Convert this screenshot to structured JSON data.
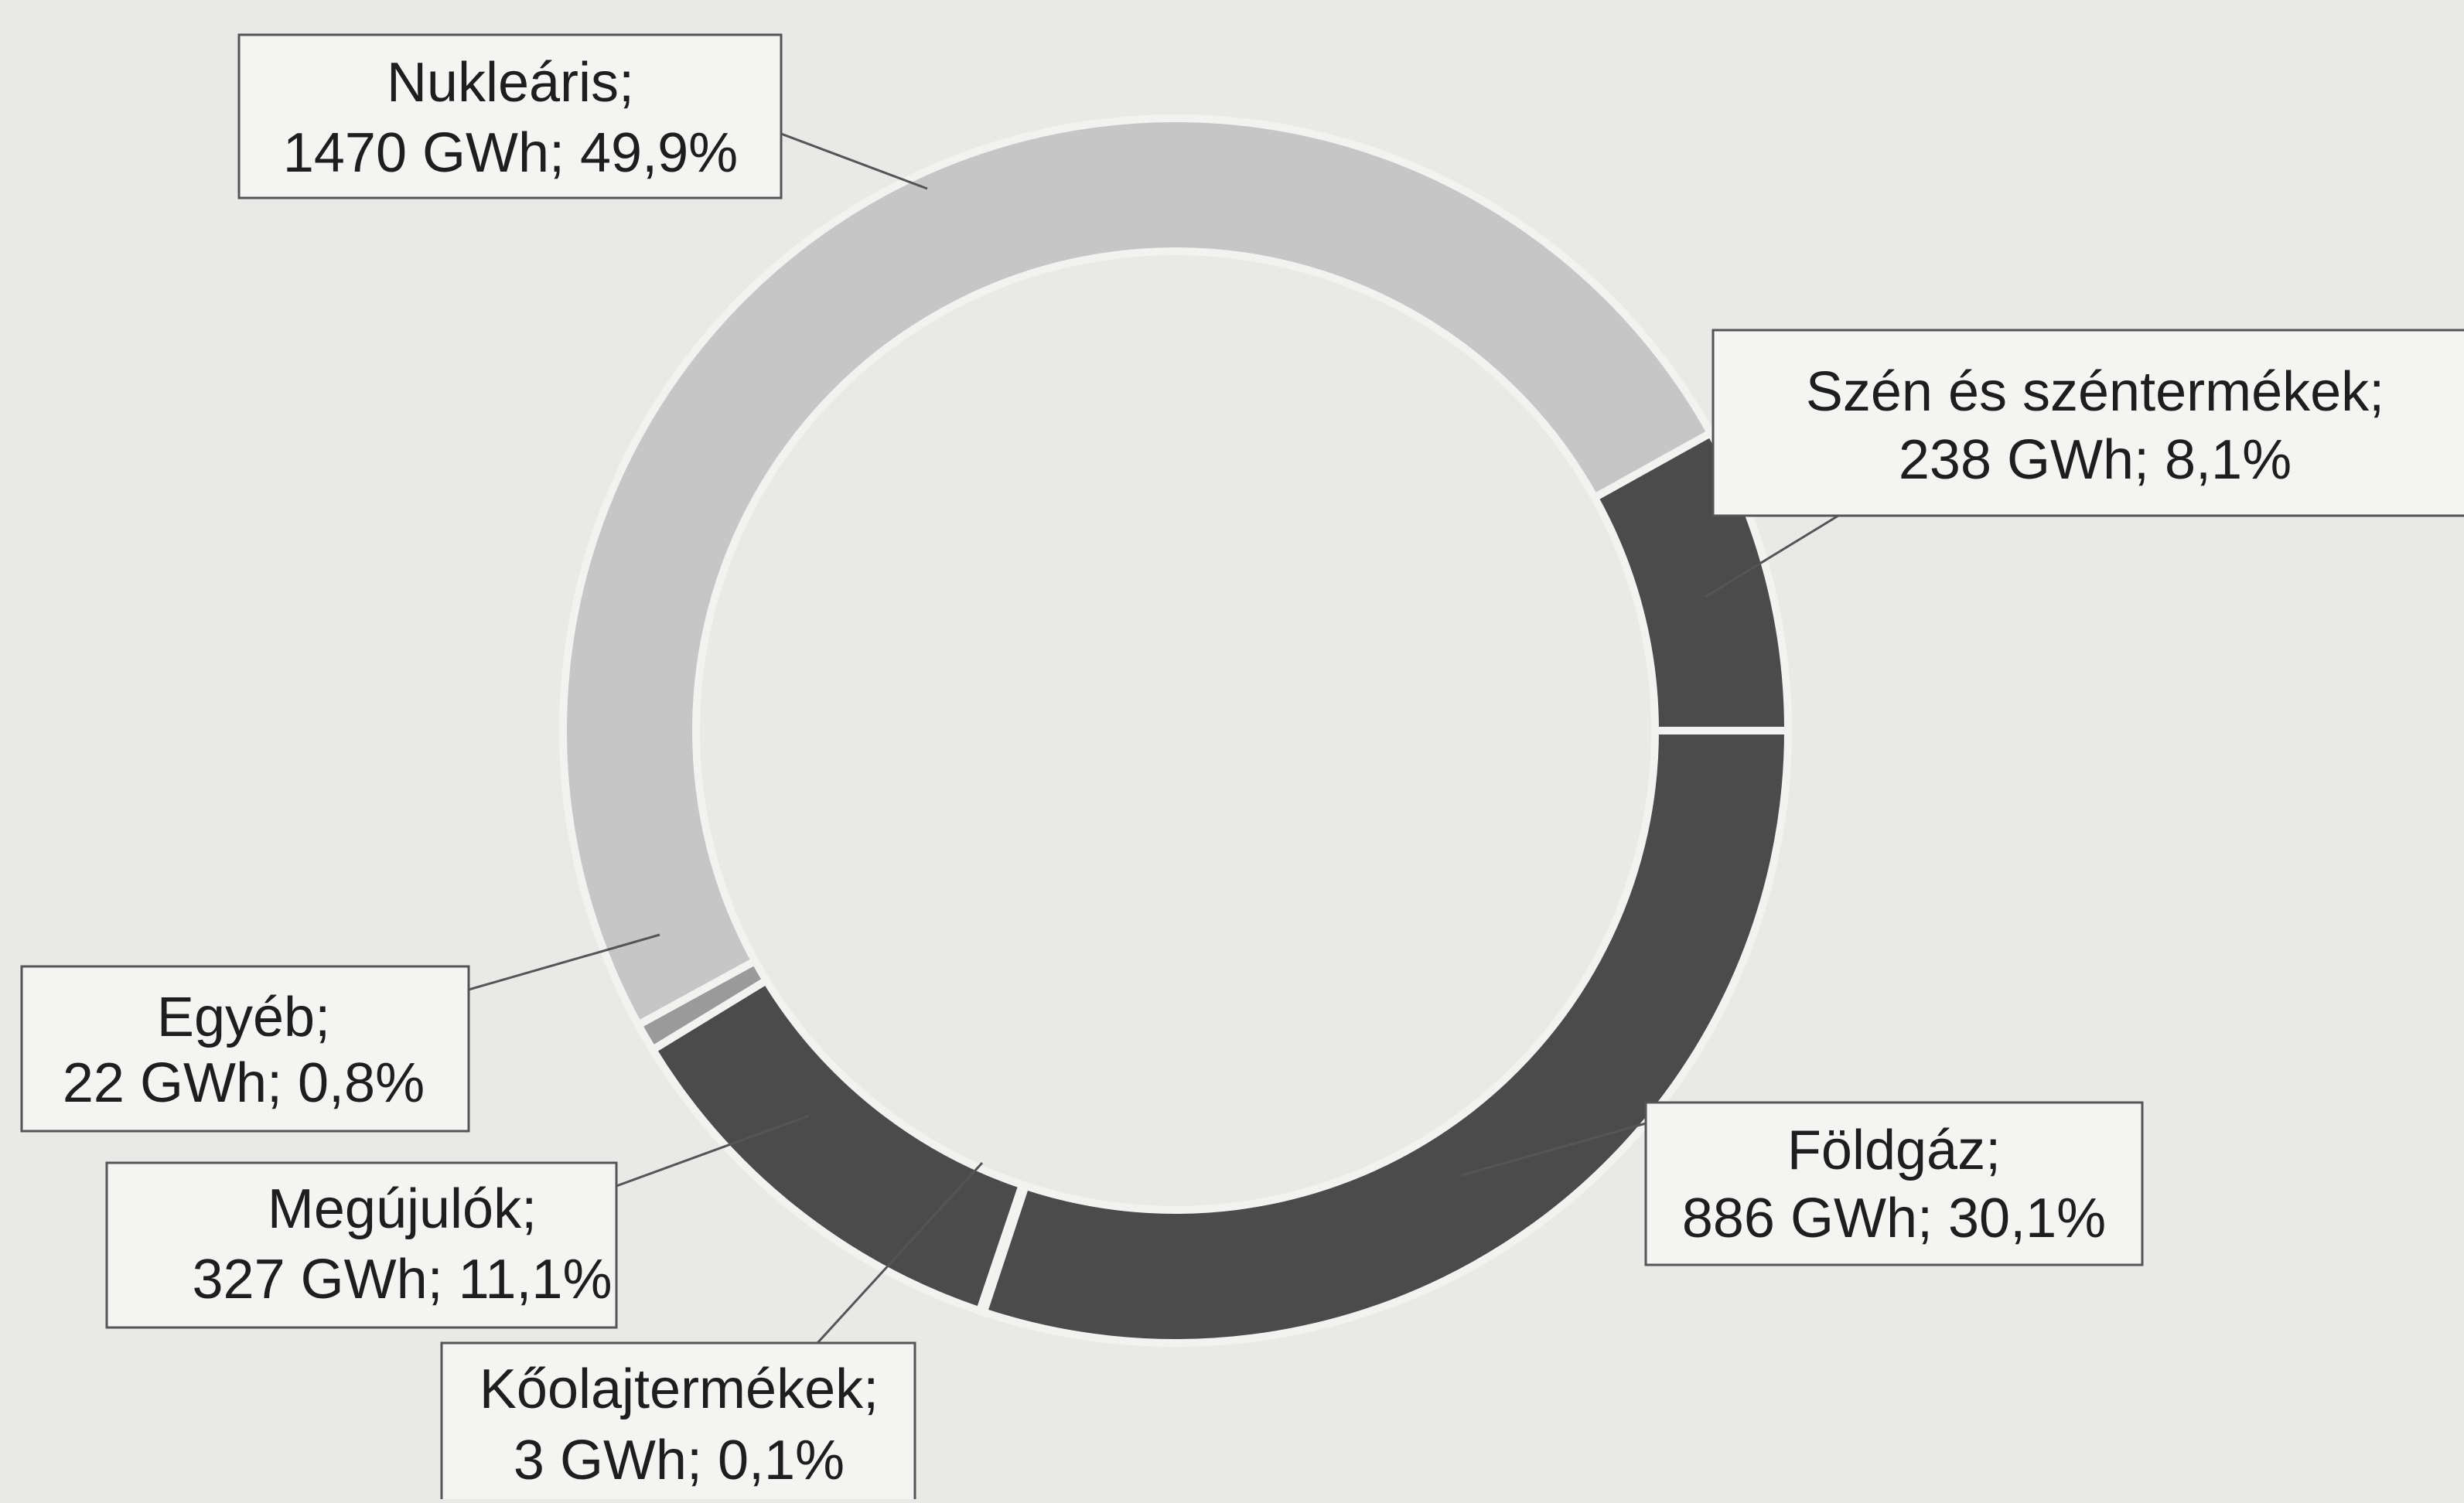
{
  "chart_data": {
    "type": "donut",
    "categories": [
      "Földgáz;",
      "Kőolajtermékek;",
      "Megújulók;",
      "Egyéb;",
      "Nukleáris;",
      "Szén és széntermékek;"
    ],
    "values": [
      886,
      3,
      327,
      22,
      1470,
      238
    ],
    "value_labels": [
      "886 GWh; 30,1%",
      "3 GWh; 0,1%",
      "327 GWh; 11,1%",
      "22 GWh; 0,8%",
      "1470 GWh; 49,9%",
      "238 GWh; 8,1%"
    ],
    "colors": [
      "#4b4b4b",
      "#8a8a8a",
      "#4b4b4b",
      "#9a9a9a",
      "#c6c6c6",
      "#4b4b4b"
    ]
  }
}
